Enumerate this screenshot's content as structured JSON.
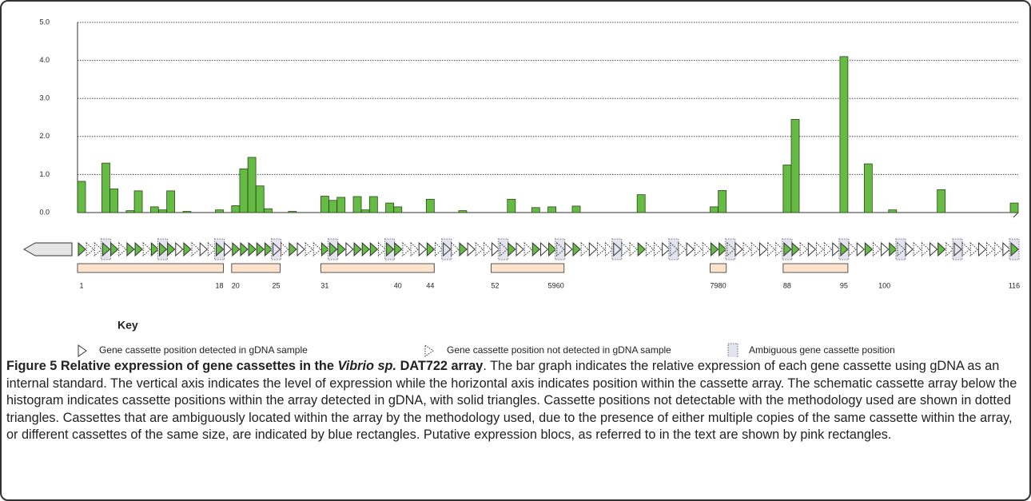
{
  "chart_data": {
    "type": "bar",
    "categories": [
      "1",
      null,
      null,
      null,
      null,
      null,
      null,
      null,
      null,
      null,
      null,
      null,
      null,
      null,
      null,
      null,
      null,
      "18",
      null,
      "20",
      null,
      null,
      null,
      null,
      "25",
      null,
      null,
      null,
      null,
      null,
      "31",
      null,
      null,
      null,
      null,
      null,
      null,
      null,
      null,
      "40",
      null,
      null,
      null,
      "44",
      null,
      null,
      null,
      null,
      null,
      null,
      null,
      "52",
      null,
      null,
      null,
      null,
      null,
      null,
      "59",
      "60",
      null,
      null,
      null,
      null,
      null,
      null,
      null,
      null,
      null,
      null,
      null,
      null,
      null,
      null,
      null,
      null,
      null,
      null,
      "79",
      "80",
      null,
      null,
      null,
      null,
      null,
      null,
      null,
      "88",
      null,
      null,
      null,
      null,
      null,
      null,
      "95",
      null,
      null,
      null,
      null,
      "100",
      null,
      null,
      null,
      null,
      null,
      null,
      null,
      null,
      null,
      null,
      null,
      null,
      null,
      null,
      null,
      "116"
    ],
    "values": [
      0.82,
      0,
      0,
      1.3,
      0.62,
      0,
      0.05,
      0.57,
      0,
      0.15,
      0.07,
      0.57,
      0,
      0.03,
      0,
      0,
      0,
      0.07,
      0,
      0.18,
      1.15,
      1.45,
      0.7,
      0.1,
      0,
      0,
      0.03,
      0,
      0,
      0,
      0.43,
      0.32,
      0.4,
      0,
      0.42,
      0.07,
      0.42,
      0,
      0.25,
      0.15,
      0,
      0,
      0,
      0.35,
      0,
      0,
      0,
      0.05,
      0,
      0,
      0,
      0,
      0,
      0.35,
      0,
      0,
      0.13,
      0,
      0.15,
      0,
      0,
      0.17,
      0,
      0,
      0,
      0,
      0,
      0,
      0,
      0.47,
      0,
      0,
      0,
      0,
      0,
      0,
      0,
      0,
      0.15,
      0.58,
      0,
      0,
      0,
      0,
      0,
      0,
      0,
      1.25,
      2.45,
      0,
      0,
      0,
      0,
      0,
      4.1,
      0,
      0,
      1.28,
      0,
      0,
      0.07,
      0,
      0,
      0,
      0,
      0,
      0.6,
      0,
      0,
      0,
      0,
      0,
      0,
      0,
      0,
      0.25
    ],
    "color": "#66bb44",
    "ylim": [
      0,
      5
    ],
    "yticks": [
      {
        "value": 0,
        "label": "0.0"
      },
      {
        "value": 1,
        "label": "1.0"
      },
      {
        "value": 2,
        "label": "2.0"
      },
      {
        "value": 3,
        "label": "3.0"
      },
      {
        "value": 4,
        "label": "4.0"
      },
      {
        "value": 5,
        "label": "5.0"
      }
    ],
    "grid": true
  },
  "key": {
    "title": "Key",
    "items": [
      "Gene cassette position detected in gDNA sample",
      "Gene cassette position not detected in gDNA sample",
      "Ambiguous gene cassette position"
    ]
  },
  "caption": {
    "label": "Figure 5",
    "title_before": "Relative expression of gene cassettes in the",
    "title_italic": "Vibrio sp.",
    "title_after": "DAT722 array",
    "text": ". The bar graph indicates the relative expression of each gene cassette using gDNA as an internal standard. The vertical axis indicates the level of expression while the horizontal axis indicates position within the cassette array. The schematic cassette array below the histogram indicates cassette positions within the array detected in gDNA, with solid triangles. Cassette positions not detectable with the methodology used are shown in dotted triangles. Cassettes that are ambiguously located within the array by the methodology used, due to the presence of either multiple copies of the same cassette within the array, or different cassettes of the same size, are indicated by blue rectangles. Putative expression blocs, as referred to in the text are shown by pink rectangles."
  }
}
